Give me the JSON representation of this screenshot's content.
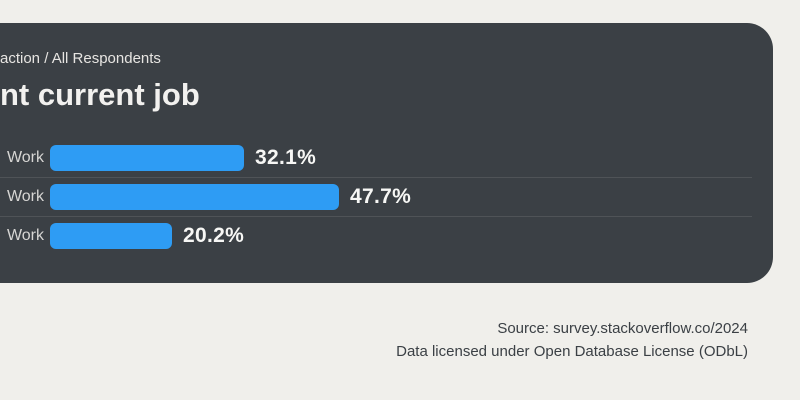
{
  "page": {
    "background": "#f0efeb"
  },
  "card": {
    "background": "#3b4045",
    "subtitle": "action / All Respondents",
    "title": "nt current job"
  },
  "chart_data": {
    "type": "bar",
    "orientation": "horizontal",
    "title": "nt current job",
    "subtitle": "action / All Respondents",
    "categories": [
      "Work",
      "Work",
      "Work"
    ],
    "values": [
      32.1,
      47.7,
      20.2
    ],
    "value_labels": [
      "32.1%",
      "47.7%",
      "20.2%"
    ],
    "xlim": [
      0,
      100
    ],
    "grid": "off",
    "legend": "none",
    "bar_color": "#2e9cf4"
  },
  "footer": {
    "source_line": "Source: survey.stackoverflow.co/2024",
    "license_line": "Data licensed under Open Database License (ODbL)"
  },
  "colors": {
    "page_bg": "#f0efeb",
    "card_bg": "#3b4045",
    "bar": "#2e9cf4",
    "value_text": "#f7f7f5",
    "category_text": "#d7d6d4",
    "footer_text": "#3b4045",
    "separator": "rgba(255,255,255,0.10)"
  }
}
